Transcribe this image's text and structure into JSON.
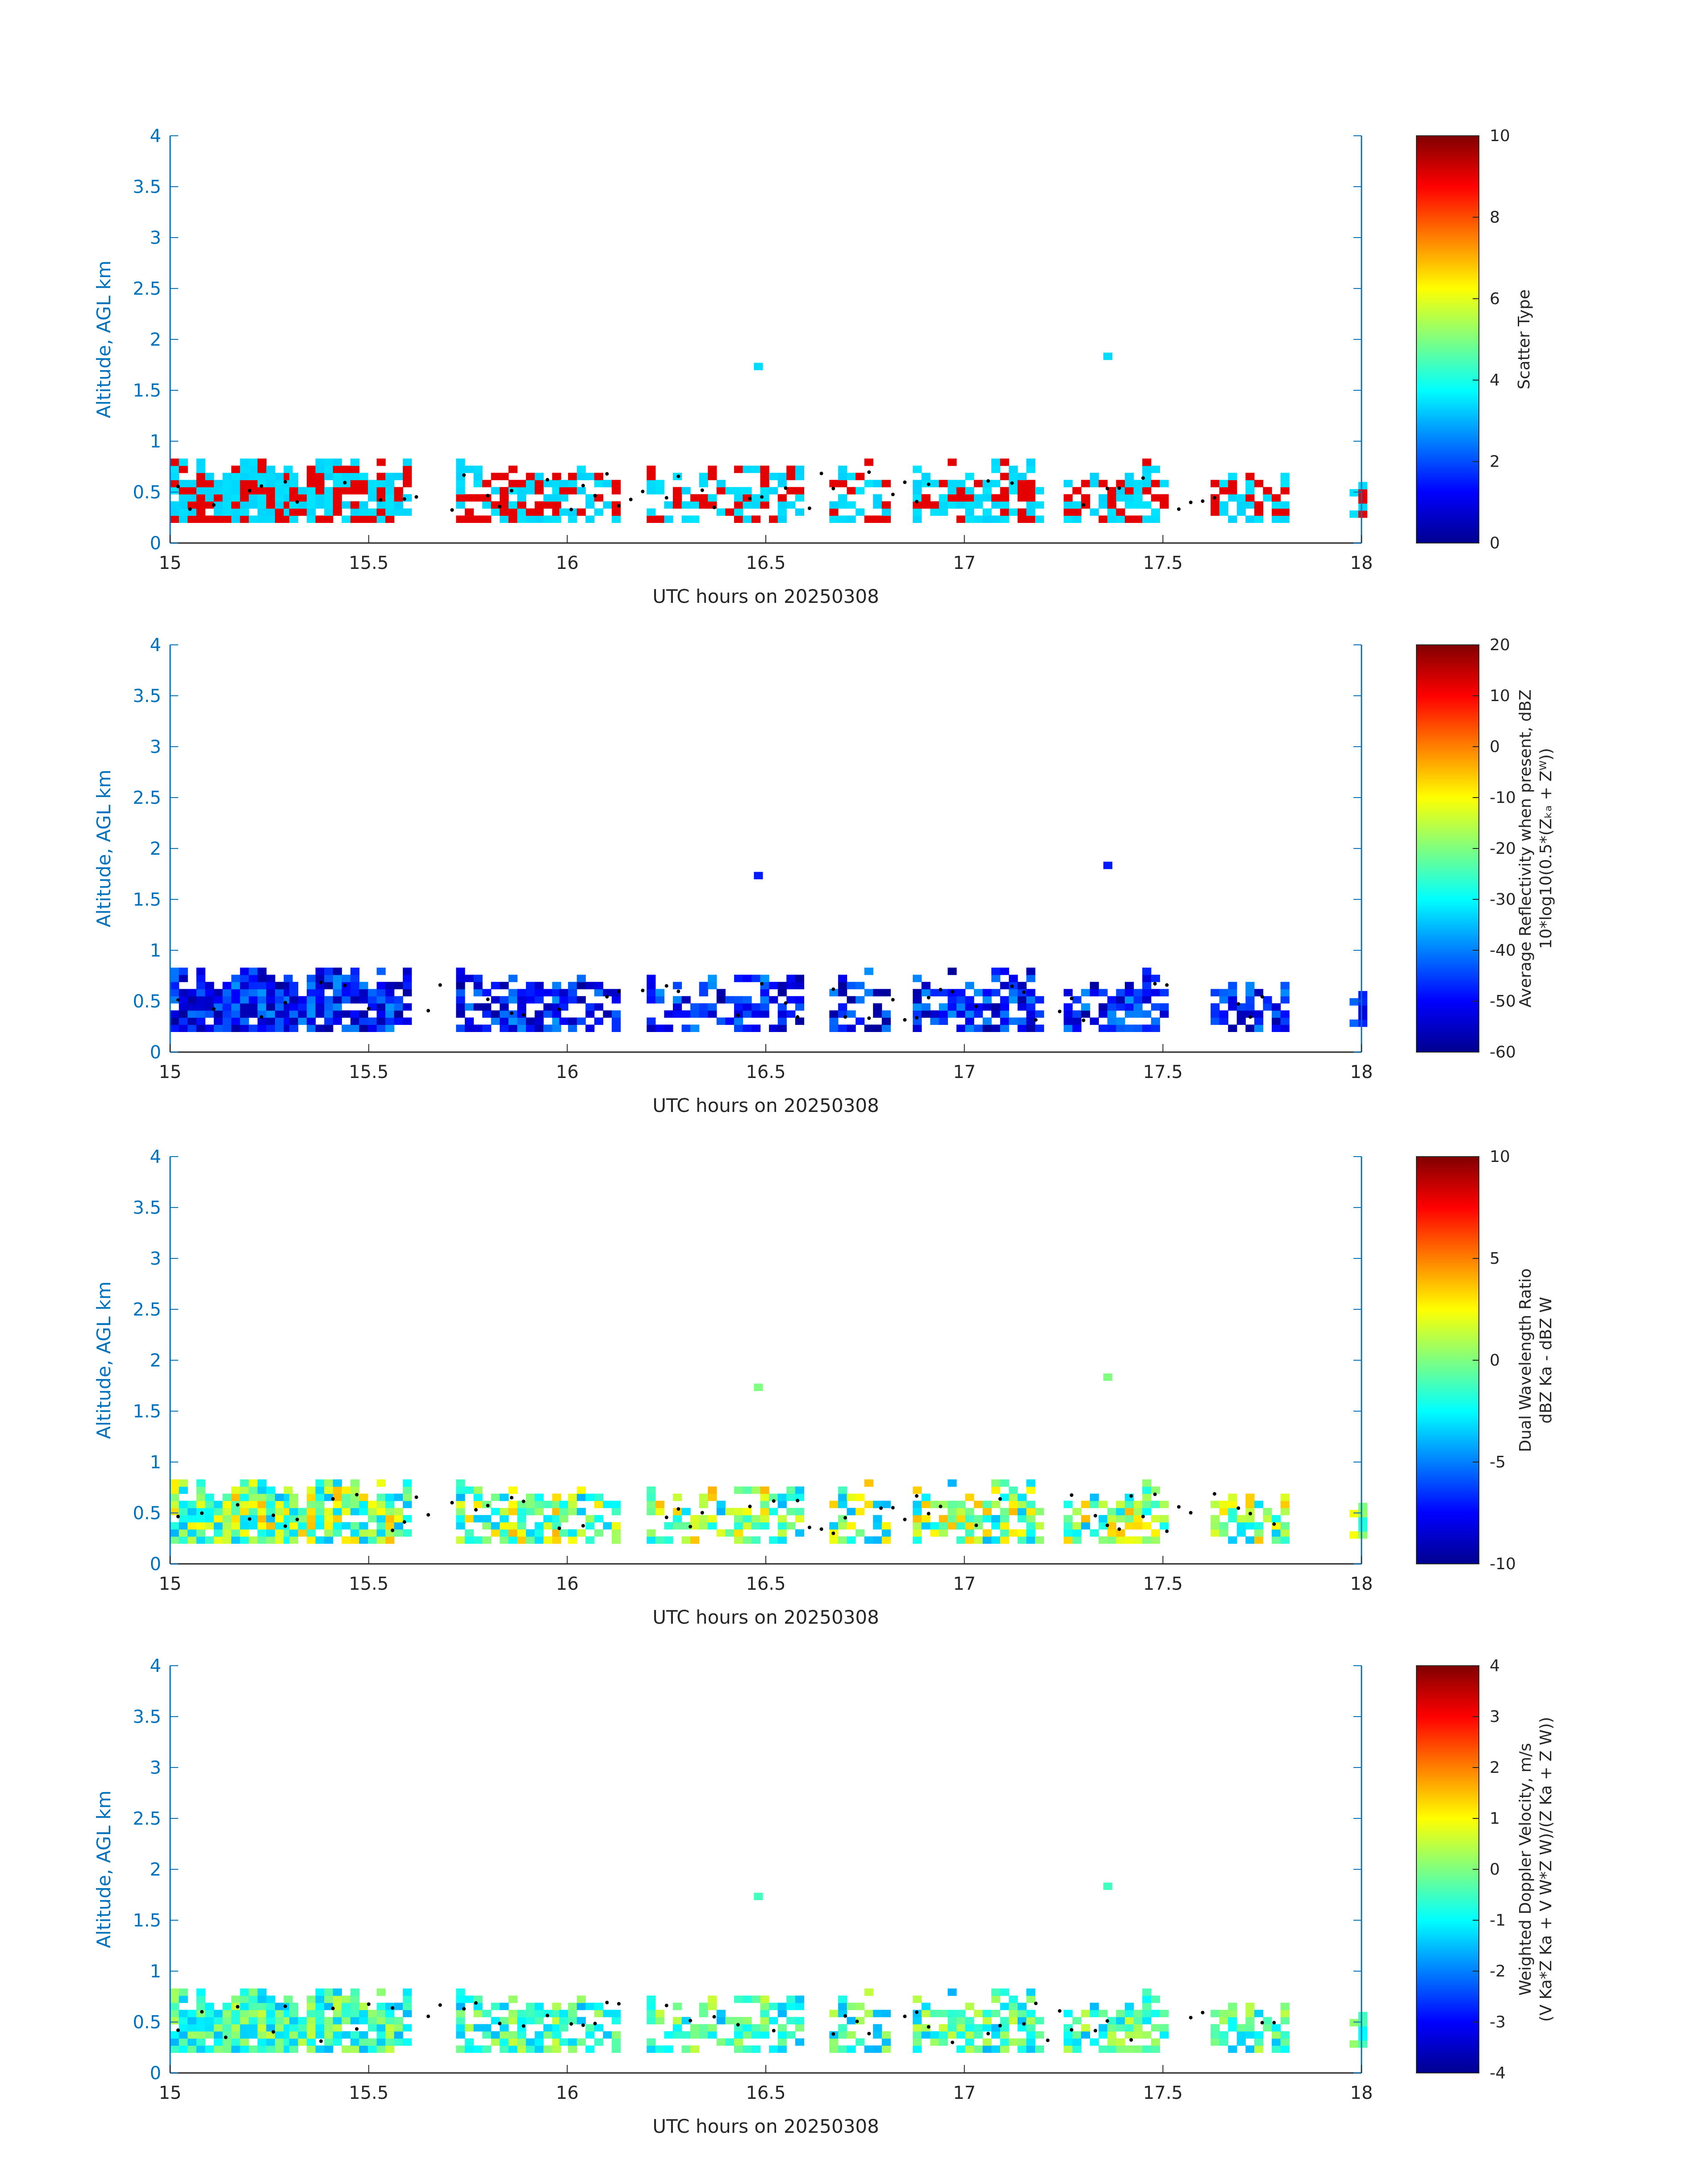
{
  "colors": {
    "axis_blue": "#0072BD",
    "text_dark": "#262626",
    "background": "#ffffff"
  },
  "chart_data": [
    {
      "type": "heatmap",
      "xlabel": "UTC hours on 20250308",
      "ylabel": "Altitude, AGL km",
      "xlim": [
        15,
        18
      ],
      "ylim": [
        0,
        4
      ],
      "xticks": [
        "15",
        "15.5",
        "16",
        "16.5",
        "17",
        "17.5",
        "18"
      ],
      "yticks": [
        "0",
        "0.5",
        "1",
        "1.5",
        "2",
        "2.5",
        "3",
        "3.5",
        "4"
      ],
      "colorbar": {
        "label_lines": [
          "Scatter Type"
        ],
        "range": [
          0,
          10
        ],
        "ticks": [
          "0",
          "2",
          "4",
          "6",
          "8",
          "10"
        ],
        "colormap": "jet"
      },
      "grid": false
    },
    {
      "type": "heatmap",
      "xlabel": "UTC hours on 20250308",
      "ylabel": "Altitude, AGL km",
      "xlim": [
        15,
        18
      ],
      "ylim": [
        0,
        4
      ],
      "xticks": [
        "15",
        "15.5",
        "16",
        "16.5",
        "17",
        "17.5",
        "18"
      ],
      "yticks": [
        "0",
        "0.5",
        "1",
        "1.5",
        "2",
        "2.5",
        "3",
        "3.5",
        "4"
      ],
      "colorbar": {
        "label_lines": [
          "Average Reflectivity when present, dBZ",
          "10*log10(0.5*(Zₖₐ + Zᵂ))"
        ],
        "range": [
          -60,
          20
        ],
        "ticks": [
          "-60",
          "-50",
          "-40",
          "-30",
          "-20",
          "-10",
          "0",
          "10",
          "20"
        ],
        "colormap": "jet"
      },
      "grid": false
    },
    {
      "type": "heatmap",
      "xlabel": "UTC hours on 20250308",
      "ylabel": "Altitude, AGL km",
      "xlim": [
        15,
        18
      ],
      "ylim": [
        0,
        4
      ],
      "xticks": [
        "15",
        "15.5",
        "16",
        "16.5",
        "17",
        "17.5",
        "18"
      ],
      "yticks": [
        "0",
        "0.5",
        "1",
        "1.5",
        "2",
        "2.5",
        "3",
        "3.5",
        "4"
      ],
      "colorbar": {
        "label_lines": [
          "Dual Wavelength Ratio",
          "dBZ Ka - dBZ W"
        ],
        "range": [
          -10,
          10
        ],
        "ticks": [
          "-10",
          "-5",
          "0",
          "5",
          "10"
        ],
        "colormap": "jet"
      },
      "grid": false
    },
    {
      "type": "heatmap",
      "xlabel": "UTC hours on 20250308",
      "ylabel": "Altitude, AGL km",
      "xlim": [
        15,
        18
      ],
      "ylim": [
        0,
        4
      ],
      "xticks": [
        "15",
        "15.5",
        "16",
        "16.5",
        "17",
        "17.5",
        "18"
      ],
      "yticks": [
        "0",
        "0.5",
        "1",
        "1.5",
        "2",
        "2.5",
        "3",
        "3.5",
        "4"
      ],
      "colorbar": {
        "label_lines": [
          "Weighted Doppler Velocity, m/s",
          "(V Ka*Z Ka + V W*Z W)/(Z Ka + Z W))"
        ],
        "range": [
          -4,
          4
        ],
        "ticks": [
          "-4",
          "-3",
          "-2",
          "-1",
          "0",
          "1",
          "2",
          "3",
          "4"
        ],
        "colormap": "jet"
      },
      "grid": false
    }
  ],
  "cloud_segments": [
    {
      "x0": 15.0,
      "x1": 15.3,
      "y0": 0.2,
      "y1": 0.85,
      "density": 0.92
    },
    {
      "x0": 15.3,
      "x1": 15.6,
      "y0": 0.2,
      "y1": 0.85,
      "density": 0.85
    },
    {
      "x0": 15.72,
      "x1": 15.98,
      "y0": 0.2,
      "y1": 0.8,
      "density": 0.7
    },
    {
      "x0": 15.98,
      "x1": 16.12,
      "y0": 0.2,
      "y1": 0.8,
      "density": 0.55
    },
    {
      "x0": 16.2,
      "x1": 16.58,
      "y0": 0.2,
      "y1": 0.78,
      "density": 0.62
    },
    {
      "x0": 16.66,
      "x1": 16.8,
      "y0": 0.2,
      "y1": 0.78,
      "density": 0.55
    },
    {
      "x0": 16.87,
      "x1": 17.2,
      "y0": 0.2,
      "y1": 0.8,
      "density": 0.72
    },
    {
      "x0": 17.25,
      "x1": 17.5,
      "y0": 0.2,
      "y1": 0.78,
      "density": 0.66
    },
    {
      "x0": 17.62,
      "x1": 17.8,
      "y0": 0.2,
      "y1": 0.72,
      "density": 0.8
    },
    {
      "x0": 17.97,
      "x1": 18.0,
      "y0": 0.25,
      "y1": 0.6,
      "density": 0.9
    }
  ],
  "isolated_echoes": [
    {
      "x": 16.47,
      "y": 1.7
    },
    {
      "x": 17.35,
      "y": 1.8
    }
  ],
  "panel_value_ranges": [
    {
      "low": 3.3,
      "high": 3.5,
      "alt": 9.0,
      "alt_fraction": 0.38
    },
    {
      "low": -58,
      "high": -38,
      "alt": -48
    },
    {
      "low": -4,
      "high": 4,
      "alt": 1.5
    },
    {
      "low": -1.6,
      "high": 0.6,
      "alt": -0.6
    }
  ]
}
